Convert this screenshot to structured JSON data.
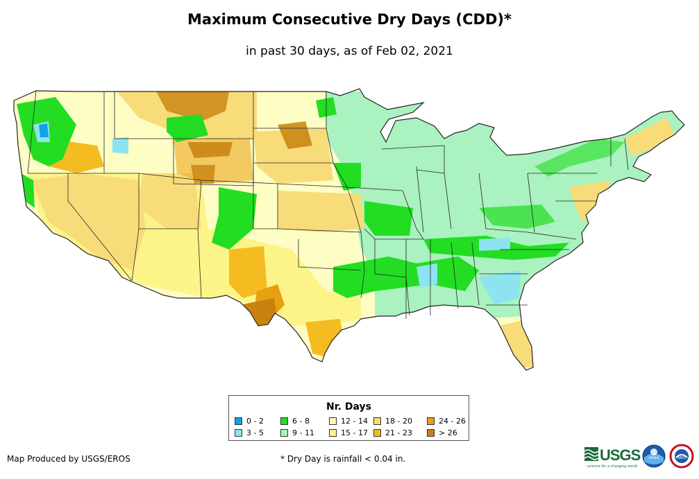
{
  "title": "Maximum Consecutive Dry Days (CDD)*",
  "subtitle": "in past 30 days, as of Feb 02, 2021",
  "legend": {
    "title": "Nr. Days",
    "items": [
      {
        "label": "0 - 2",
        "color": "#12a0e8"
      },
      {
        "label": "3 - 5",
        "color": "#8de4f0"
      },
      {
        "label": "6 - 8",
        "color": "#22dd22"
      },
      {
        "label": "9 - 11",
        "color": "#aaf2c0"
      },
      {
        "label": "12 - 14",
        "color": "#fefdc4"
      },
      {
        "label": "15 - 17",
        "color": "#fcf488"
      },
      {
        "label": "18 - 20",
        "color": "#f8dc7a"
      },
      {
        "label": "21 - 23",
        "color": "#f4bc20"
      },
      {
        "label": "24 - 26",
        "color": "#e8a010"
      },
      {
        "label": "> 26",
        "color": "#c8820e"
      }
    ]
  },
  "credit": "Map Produced by USGS/EROS",
  "footnote": "* Dry Day is rainfall < 0.04 in.",
  "logos": {
    "usgs_text": "USGS",
    "usgs_tagline": "science for a changing world",
    "noaa_text": "noaa",
    "nws_text": "NWS"
  }
}
